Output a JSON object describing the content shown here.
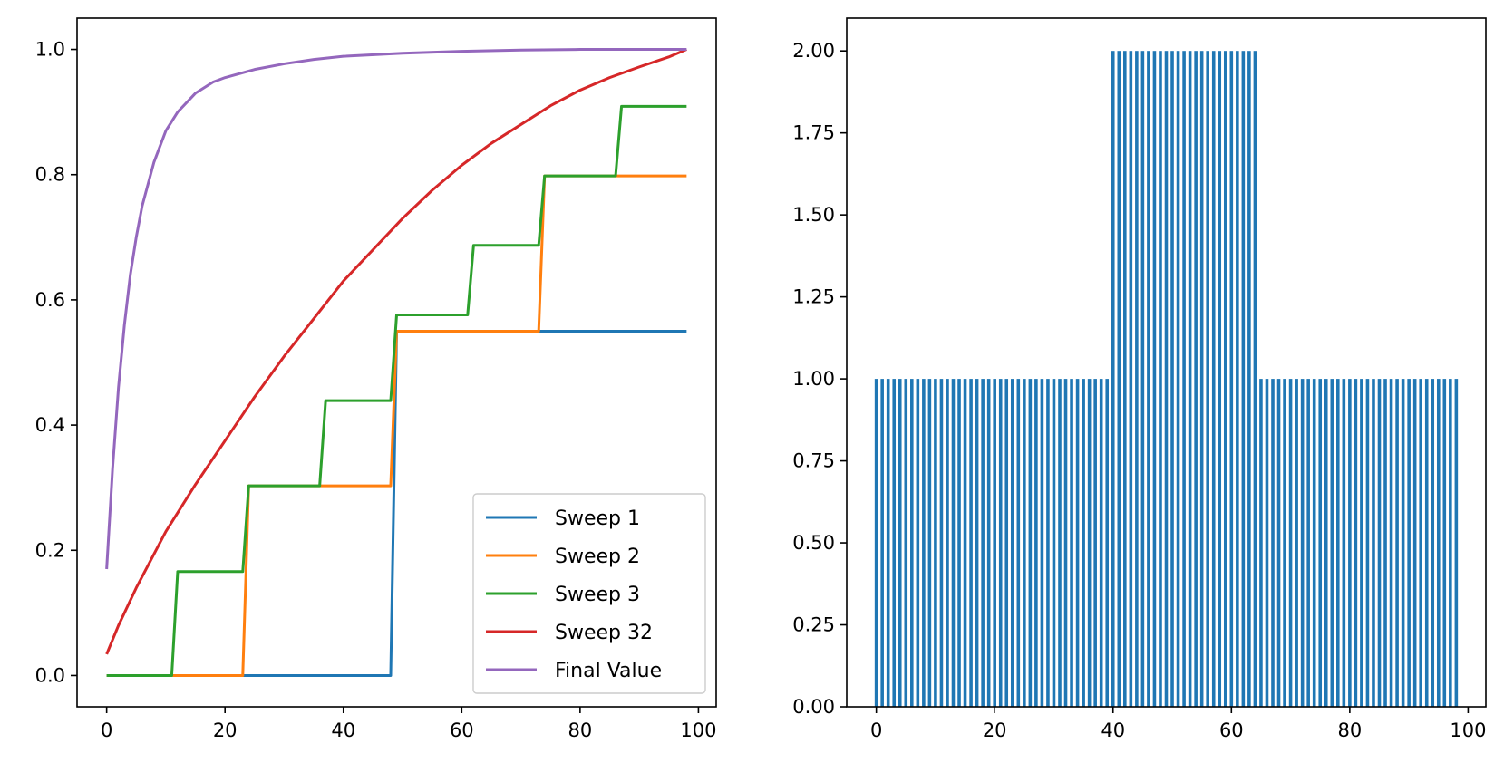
{
  "chart_data": [
    {
      "type": "line",
      "xlim": [
        -5,
        103
      ],
      "ylim": [
        -0.05,
        1.05
      ],
      "xticks": [
        0,
        20,
        40,
        60,
        80,
        100
      ],
      "yticks": [
        0.0,
        0.2,
        0.4,
        0.6,
        0.8,
        1.0
      ],
      "xtick_labels": [
        "0",
        "20",
        "40",
        "60",
        "80",
        "100"
      ],
      "ytick_labels": [
        "0.0",
        "0.2",
        "0.4",
        "0.6",
        "0.8",
        "1.0"
      ],
      "grid": false,
      "legend_position": "lower-right",
      "series": [
        {
          "name": "Sweep 1",
          "color": "#1f77b4",
          "points": [
            [
              0,
              0
            ],
            [
              48,
              0
            ],
            [
              49,
              0.55
            ],
            [
              98,
              0.55
            ]
          ]
        },
        {
          "name": "Sweep 2",
          "color": "#ff7f0e",
          "points": [
            [
              0,
              0
            ],
            [
              23,
              0
            ],
            [
              24,
              0.303
            ],
            [
              48,
              0.303
            ],
            [
              49,
              0.55
            ],
            [
              73,
              0.55
            ],
            [
              74,
              0.798
            ],
            [
              98,
              0.798
            ]
          ]
        },
        {
          "name": "Sweep 3",
          "color": "#2ca02c",
          "points": [
            [
              0,
              0
            ],
            [
              11,
              0
            ],
            [
              12,
              0.166
            ],
            [
              23,
              0.166
            ],
            [
              24,
              0.303
            ],
            [
              36,
              0.303
            ],
            [
              37,
              0.439
            ],
            [
              48,
              0.439
            ],
            [
              49,
              0.576
            ],
            [
              61,
              0.576
            ],
            [
              62,
              0.687
            ],
            [
              73,
              0.687
            ],
            [
              74,
              0.798
            ],
            [
              86,
              0.798
            ],
            [
              87,
              0.909
            ],
            [
              98,
              0.909
            ]
          ]
        },
        {
          "name": "Sweep 32",
          "color": "#d62728",
          "points": [
            [
              0,
              0.034
            ],
            [
              2,
              0.08
            ],
            [
              5,
              0.14
            ],
            [
              10,
              0.23
            ],
            [
              15,
              0.305
            ],
            [
              20,
              0.375
            ],
            [
              25,
              0.445
            ],
            [
              30,
              0.51
            ],
            [
              35,
              0.57
            ],
            [
              40,
              0.63
            ],
            [
              45,
              0.68
            ],
            [
              50,
              0.73
            ],
            [
              55,
              0.775
            ],
            [
              60,
              0.815
            ],
            [
              65,
              0.85
            ],
            [
              70,
              0.88
            ],
            [
              75,
              0.91
            ],
            [
              80,
              0.935
            ],
            [
              85,
              0.955
            ],
            [
              90,
              0.972
            ],
            [
              95,
              0.988
            ],
            [
              98,
              1.0
            ]
          ]
        },
        {
          "name": "Final Value",
          "color": "#9467bd",
          "points": [
            [
              0,
              0.17
            ],
            [
              1,
              0.33
            ],
            [
              2,
              0.46
            ],
            [
              3,
              0.56
            ],
            [
              4,
              0.64
            ],
            [
              5,
              0.7
            ],
            [
              6,
              0.75
            ],
            [
              8,
              0.82
            ],
            [
              10,
              0.87
            ],
            [
              12,
              0.9
            ],
            [
              15,
              0.93
            ],
            [
              18,
              0.948
            ],
            [
              20,
              0.955
            ],
            [
              25,
              0.968
            ],
            [
              30,
              0.977
            ],
            [
              35,
              0.984
            ],
            [
              40,
              0.989
            ],
            [
              50,
              0.994
            ],
            [
              60,
              0.997
            ],
            [
              70,
              0.999
            ],
            [
              80,
              1.0
            ],
            [
              98,
              1.0
            ]
          ]
        }
      ]
    },
    {
      "type": "bar",
      "xlim": [
        -5,
        103
      ],
      "ylim": [
        0,
        2.1
      ],
      "xticks": [
        0,
        20,
        40,
        60,
        80,
        100
      ],
      "yticks": [
        0.0,
        0.25,
        0.5,
        0.75,
        1.0,
        1.25,
        1.5,
        1.75,
        2.0
      ],
      "xtick_labels": [
        "0",
        "20",
        "40",
        "60",
        "80",
        "100"
      ],
      "ytick_labels": [
        "0.00",
        "0.25",
        "0.50",
        "0.75",
        "1.00",
        "1.25",
        "1.50",
        "1.75",
        "2.00"
      ],
      "grid": false,
      "color": "#1f77b4",
      "bars": [
        {
          "x_range": [
            0,
            39
          ],
          "value": 1.0
        },
        {
          "x_range": [
            40,
            64
          ],
          "value": 2.0
        },
        {
          "x_range": [
            65,
            98
          ],
          "value": 1.0
        }
      ]
    }
  ]
}
